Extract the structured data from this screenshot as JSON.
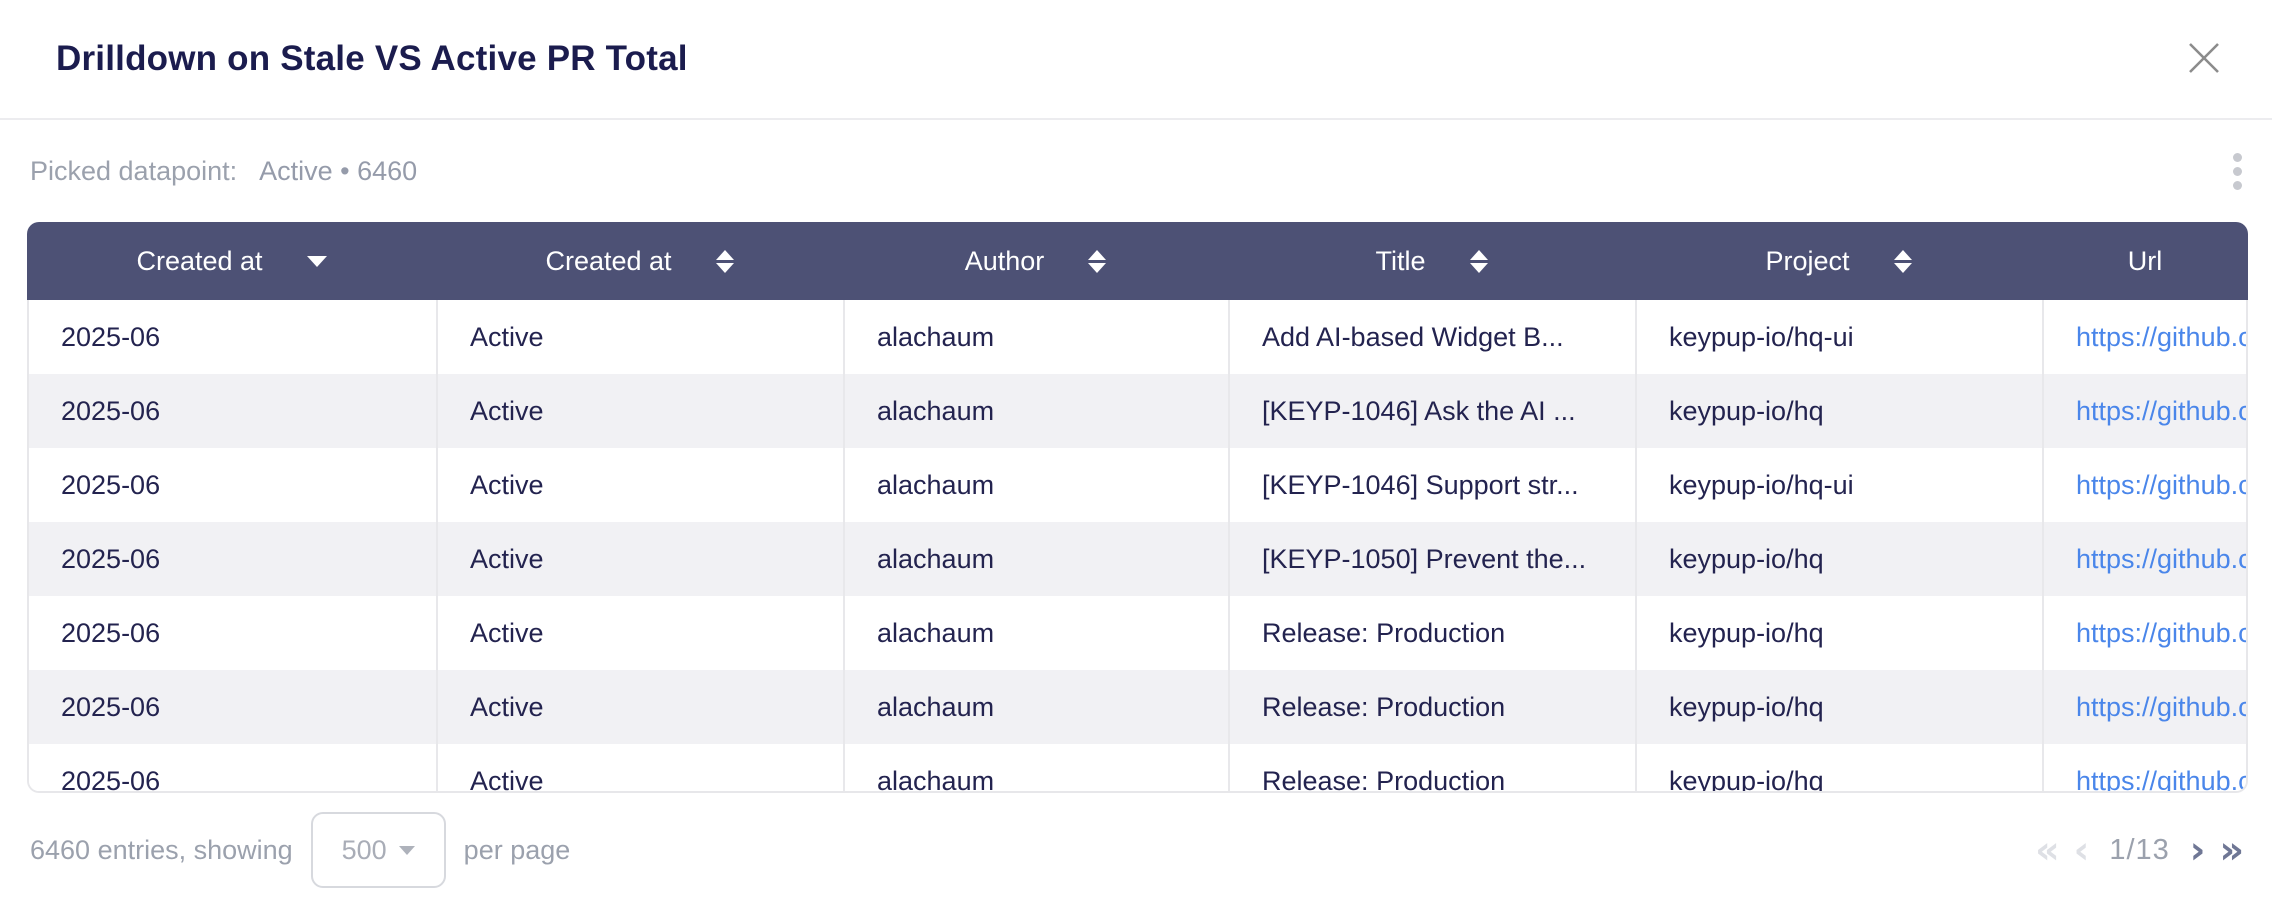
{
  "modal": {
    "title": "Drilldown on Stale VS Active PR Total"
  },
  "picked": {
    "label": "Picked datapoint:",
    "value": "Active • 6460"
  },
  "table": {
    "columns": [
      {
        "label": "Created at",
        "sort": "desc"
      },
      {
        "label": "Created at",
        "sort": "both"
      },
      {
        "label": "Author",
        "sort": "both"
      },
      {
        "label": "Title",
        "sort": "both"
      },
      {
        "label": "Project",
        "sort": "both"
      },
      {
        "label": "Url",
        "sort": "none"
      }
    ],
    "rows": [
      [
        "2025-06",
        "Active",
        "alachaum",
        "Add AI-based Widget B...",
        "keypup-io/hq-ui",
        "https://github.c"
      ],
      [
        "2025-06",
        "Active",
        "alachaum",
        "[KEYP-1046] Ask the AI ...",
        "keypup-io/hq",
        "https://github.c"
      ],
      [
        "2025-06",
        "Active",
        "alachaum",
        "[KEYP-1046] Support str...",
        "keypup-io/hq-ui",
        "https://github.c"
      ],
      [
        "2025-06",
        "Active",
        "alachaum",
        "[KEYP-1050] Prevent the...",
        "keypup-io/hq",
        "https://github.c"
      ],
      [
        "2025-06",
        "Active",
        "alachaum",
        "Release: Production",
        "keypup-io/hq",
        "https://github.c"
      ],
      [
        "2025-06",
        "Active",
        "alachaum",
        "Release: Production",
        "keypup-io/hq",
        "https://github.c"
      ],
      [
        "2025-06",
        "Active",
        "alachaum",
        "Release: Production",
        "keypup-io/hq",
        "https://github.c"
      ]
    ]
  },
  "footer": {
    "entries_text": "6460 entries, showing",
    "page_size": "500",
    "per_page_text": "per page",
    "page_indicator": "1/13",
    "first_icon": "«",
    "prev_icon": "‹",
    "next_icon": "›",
    "last_icon": "»"
  },
  "colors": {
    "header_bg": "#4d5175",
    "title_text": "#1b1c4e",
    "body_text": "#23234f",
    "link": "#4a86ea",
    "muted_text": "#9ba1ad",
    "row_alt": "#f1f1f4",
    "pager_active": "#6f7795",
    "pager_disabled": "#dee0e5"
  }
}
